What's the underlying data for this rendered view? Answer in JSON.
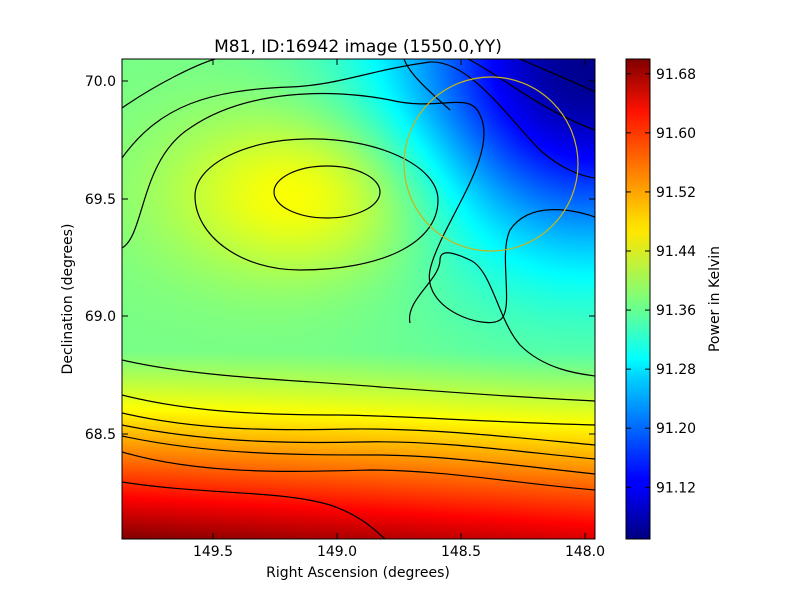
{
  "chart_data": {
    "type": "heatmap",
    "title": "M81, ID:16942 image (1550.0,YY)",
    "xlabel": "Right Ascension (degrees)",
    "ylabel": "Declination (degrees)",
    "xlim": [
      149.78,
      147.87
    ],
    "ylim": [
      68.05,
      70.09
    ],
    "x_ticks": [
      149.5,
      149.0,
      148.5,
      148.0
    ],
    "x_tick_labels": [
      "149.5",
      "149.0",
      "148.5",
      "148.0"
    ],
    "y_ticks": [
      68.5,
      69.0,
      69.5,
      70.0
    ],
    "y_tick_labels": [
      "68.5",
      "69.0",
      "69.5",
      "70.0"
    ],
    "grid": false,
    "colormap": "jet",
    "colorbar": {
      "label": "Power in Kelvin",
      "range": [
        91.05,
        91.7
      ],
      "ticks": [
        91.12,
        91.2,
        91.28,
        91.36,
        91.44,
        91.52,
        91.6,
        91.68
      ],
      "tick_labels": [
        "91.12",
        "91.20",
        "91.28",
        "91.36",
        "91.44",
        "91.52",
        "91.60",
        "91.68"
      ]
    },
    "field": {
      "description_values": "approximate Power in Kelvin over the field",
      "peak": {
        "ra": 149.02,
        "dec": 69.52,
        "value": 91.47
      },
      "northeast_minimum": {
        "ra": 147.9,
        "dec": 70.05,
        "value": 91.06
      },
      "southern_maximum": {
        "ra": 149.7,
        "dec": 68.08,
        "value": 91.7
      }
    },
    "contour_color": "#000000",
    "annotation_circle": {
      "ra": 148.32,
      "dec": 69.65,
      "radius_deg": 0.37,
      "color": "#c8b41e"
    }
  }
}
